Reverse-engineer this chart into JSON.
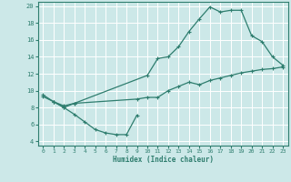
{
  "xlabel": "Humidex (Indice chaleur)",
  "bg_color": "#cce8e8",
  "grid_color": "#ffffff",
  "line_color": "#2e7d6e",
  "xlim": [
    -0.5,
    23.5
  ],
  "ylim": [
    3.5,
    20.5
  ],
  "xticks": [
    0,
    1,
    2,
    3,
    4,
    5,
    6,
    7,
    8,
    9,
    10,
    11,
    12,
    13,
    14,
    15,
    16,
    17,
    18,
    19,
    20,
    21,
    22,
    23
  ],
  "yticks": [
    4,
    6,
    8,
    10,
    12,
    14,
    16,
    18,
    20
  ],
  "line1_x": [
    0,
    1,
    2,
    3,
    4,
    5,
    6,
    7,
    8,
    9
  ],
  "line1_y": [
    9.5,
    8.7,
    8.0,
    7.2,
    6.3,
    5.4,
    5.0,
    4.8,
    4.8,
    7.1
  ],
  "line2_x": [
    0,
    1,
    2,
    3,
    9,
    10,
    11,
    12,
    13,
    14,
    15,
    16,
    17,
    18,
    19,
    20,
    21,
    22,
    23
  ],
  "line2_y": [
    9.3,
    8.7,
    8.2,
    8.5,
    9.0,
    9.2,
    9.2,
    10.0,
    10.5,
    11.0,
    10.7,
    11.2,
    11.5,
    11.8,
    12.1,
    12.3,
    12.5,
    12.6,
    12.8
  ],
  "line3_x": [
    1,
    2,
    3,
    10,
    11,
    12,
    13,
    14,
    15,
    16,
    17,
    18,
    19,
    20,
    21,
    22,
    23
  ],
  "line3_y": [
    8.7,
    8.0,
    8.5,
    11.8,
    13.8,
    14.0,
    15.2,
    17.0,
    18.5,
    19.9,
    19.3,
    19.5,
    19.5,
    16.5,
    15.8,
    14.0,
    13.0
  ]
}
